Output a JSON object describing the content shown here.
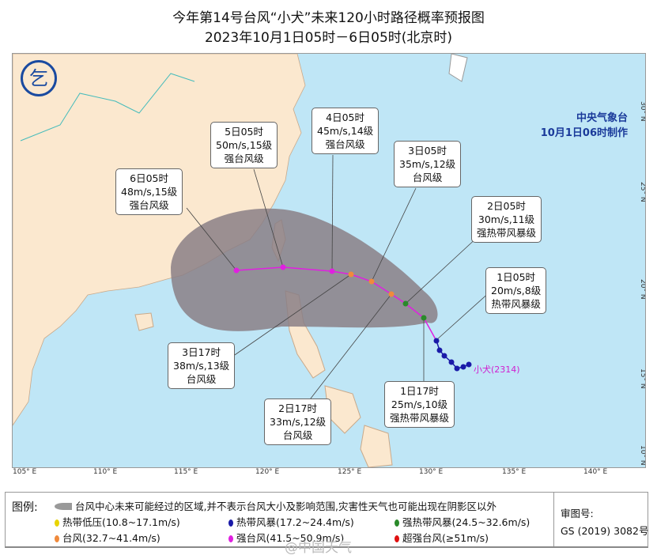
{
  "title": "今年第14号台风“小犬”未来120小时路径概率预报图",
  "subtitle": "2023年10月1日05时－6日05时(北京时)",
  "agency": {
    "name": "中央气象台",
    "issued": "10月1日06时制作"
  },
  "typhoon_label": "小犬(2314)",
  "latitudes": [
    "30° N",
    "25° N",
    "20° N",
    "15° N",
    "10° N"
  ],
  "longitudes": [
    "105° E",
    "110° E",
    "115° E",
    "120° E",
    "125° E",
    "130° E",
    "135° E",
    "140° E"
  ],
  "forecasts": [
    {
      "time": "6日05时",
      "wind": "48m/s,15级",
      "level": "强台风级"
    },
    {
      "time": "5日05时",
      "wind": "50m/s,15级",
      "level": "强台风级"
    },
    {
      "time": "4日05时",
      "wind": "45m/s,14级",
      "level": "强台风级"
    },
    {
      "time": "3日05时",
      "wind": "35m/s,12级",
      "level": "台风级"
    },
    {
      "time": "2日05时",
      "wind": "30m/s,11级",
      "level": "强热带风暴级"
    },
    {
      "time": "1日05时",
      "wind": "20m/s,8级",
      "level": "热带风暴级"
    },
    {
      "time": "3日17时",
      "wind": "38m/s,13级",
      "level": "台风级"
    },
    {
      "time": "2日17时",
      "wind": "33m/s,12级",
      "level": "台风级"
    },
    {
      "time": "1日17时",
      "wind": "25m/s,10级",
      "level": "强热带风暴级"
    }
  ],
  "legend": {
    "title": "图例:",
    "cone": "台风中心未来可能经过的区域,并不表示台风大小及影响范围,灾害性天气也可能出现在阴影区以外",
    "items": [
      {
        "label": "热带低压(10.8~17.1m/s)",
        "color": "#e8d400"
      },
      {
        "label": "热带风暴(17.2~24.4m/s)",
        "color": "#1a1aa8"
      },
      {
        "label": "强热带风暴(24.5~32.6m/s)",
        "color": "#2a8a2a"
      },
      {
        "label": "台风(32.7~41.4m/s)",
        "color": "#f08a3c"
      },
      {
        "label": "强台风(41.5~50.9m/s)",
        "color": "#e020e0"
      },
      {
        "label": "超强台风(≥51m/s)",
        "color": "#e01010"
      }
    ],
    "review_label": "审图号:",
    "review_no": "GS (2019) 3082号"
  },
  "watermark": "@中国天气"
}
